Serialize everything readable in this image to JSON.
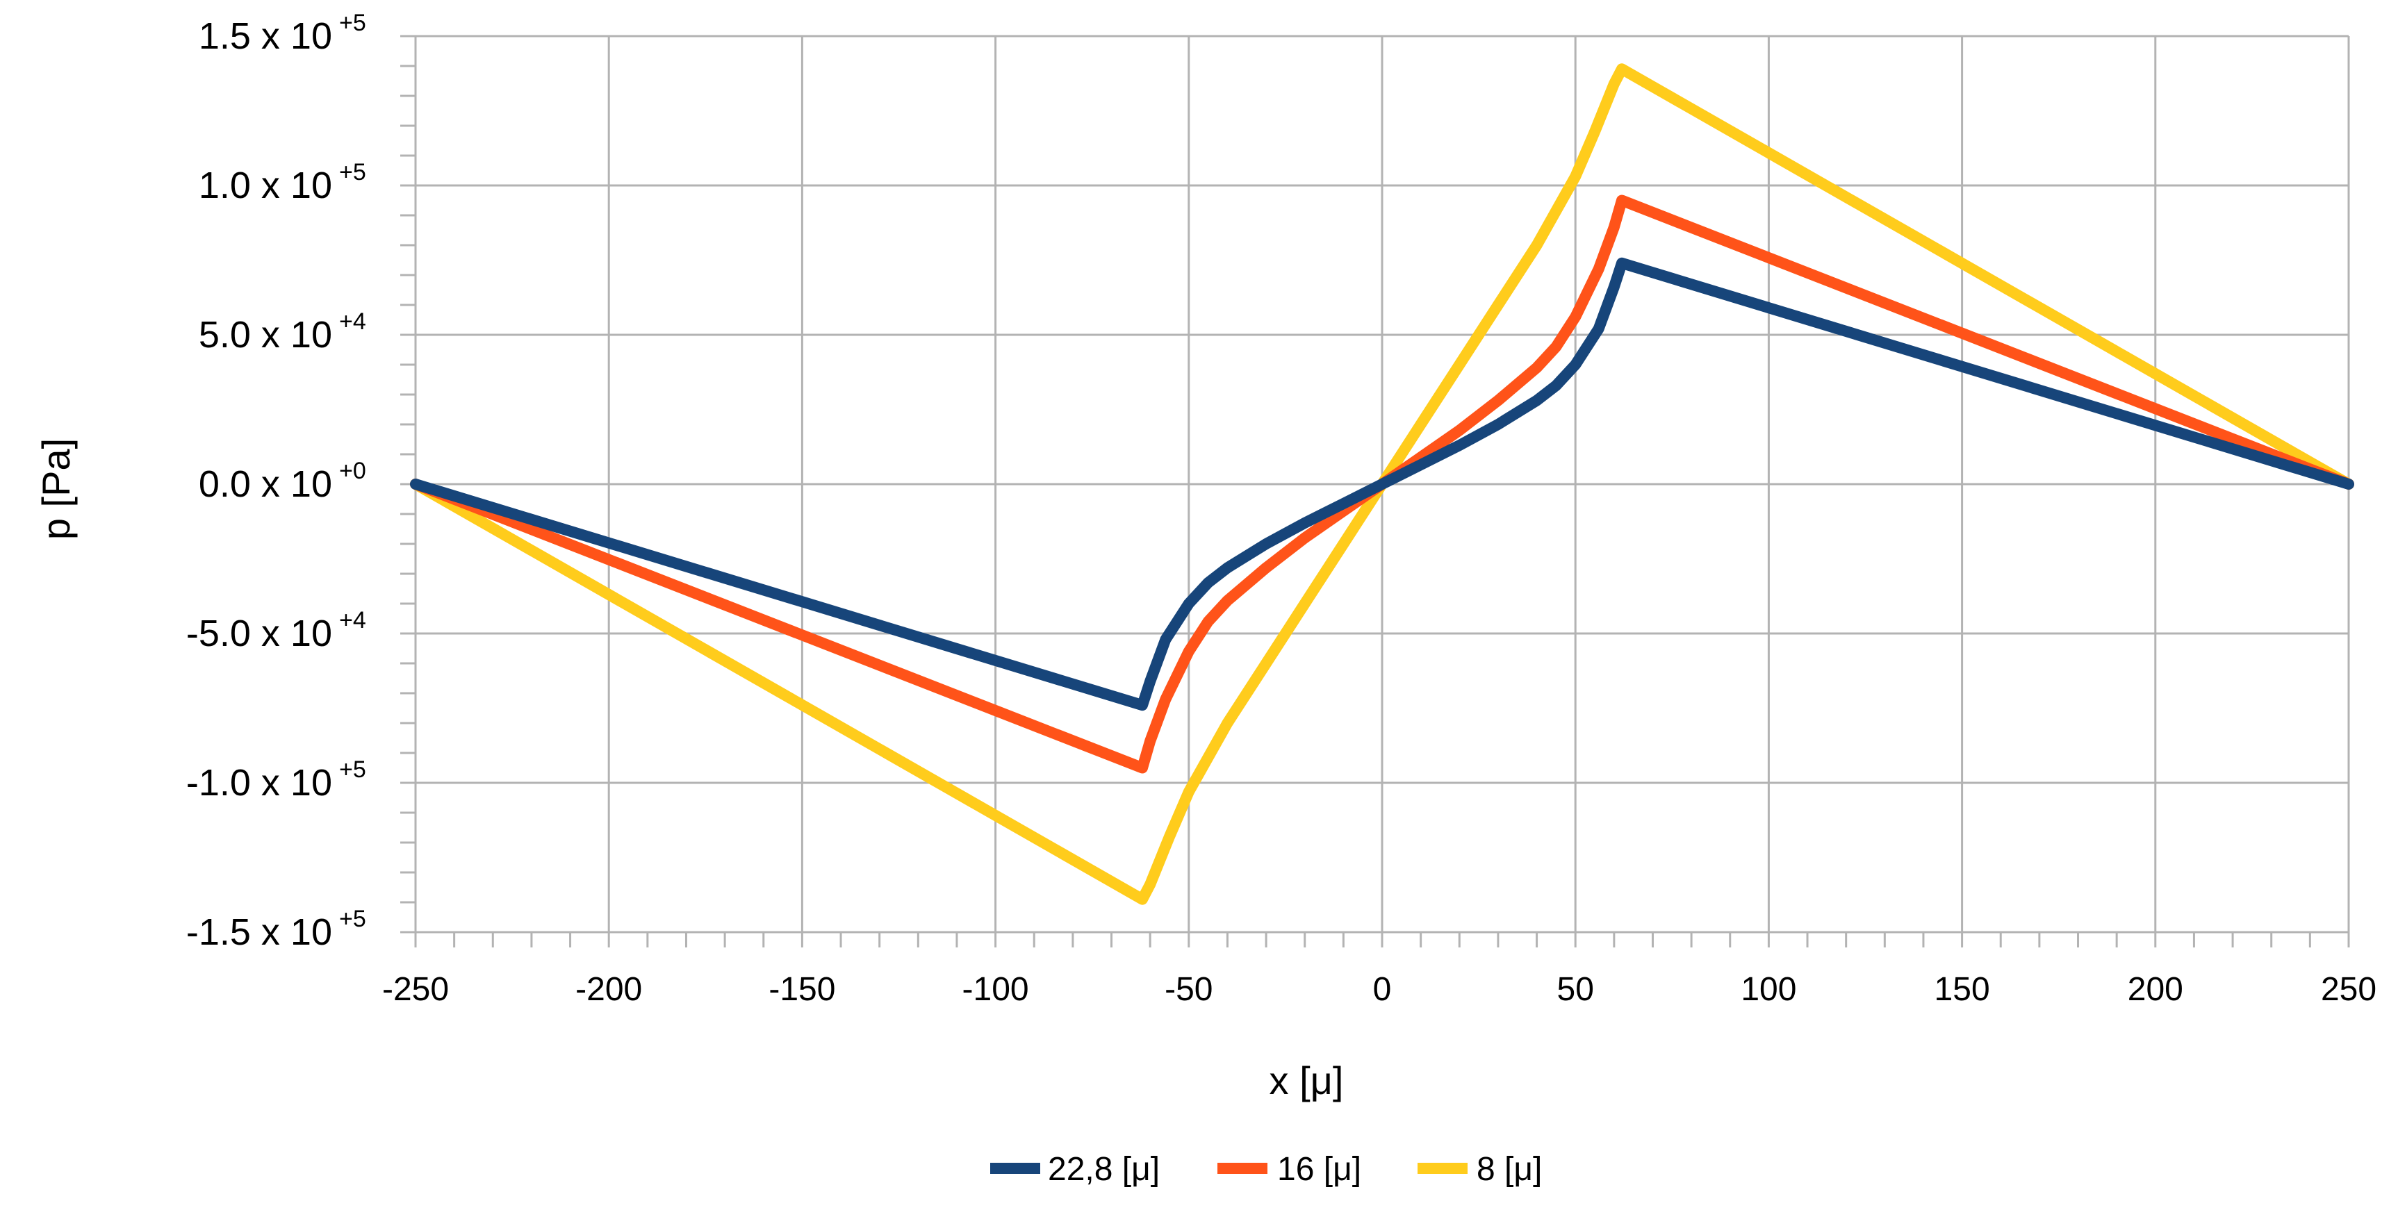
{
  "chart_data": {
    "type": "line",
    "title": "",
    "xlabel": "x [μ]",
    "ylabel": "p [Pa]",
    "xlim": [
      -250,
      250
    ],
    "ylim": [
      -150000,
      150000
    ],
    "x_ticks": [
      -250,
      -200,
      -150,
      -100,
      -50,
      0,
      50,
      100,
      150,
      200,
      250
    ],
    "x_tick_labels": [
      "-250",
      "-200",
      "-150",
      "-100",
      "-50",
      "0",
      "50",
      "100",
      "150",
      "200",
      "250"
    ],
    "y_ticks": [
      150000,
      100000,
      50000,
      0,
      -50000,
      -100000,
      -150000
    ],
    "y_tick_labels": [
      {
        "mantissa": "1.5 x 10",
        "exp": "+5"
      },
      {
        "mantissa": "1.0 x 10",
        "exp": "+5"
      },
      {
        "mantissa": "5.0 x 10",
        "exp": "+4"
      },
      {
        "mantissa": "0.0 x 10",
        "exp": "+0"
      },
      {
        "mantissa": "-5.0 x 10",
        "exp": "+4"
      },
      {
        "mantissa": "-1.0 x 10",
        "exp": "+5"
      },
      {
        "mantissa": "-1.5 x 10",
        "exp": "+5"
      }
    ],
    "grid": true,
    "legend_position": "bottom",
    "series": [
      {
        "name": "22,8 [μ]",
        "color": "#17457A",
        "x": [
          -250,
          -62,
          -60,
          -56,
          -50,
          -45,
          -40,
          -30,
          -20,
          -10,
          0,
          10,
          20,
          30,
          40,
          45,
          50,
          56,
          60,
          62,
          250
        ],
        "y": [
          0,
          -74000,
          -66000,
          -52000,
          -40000,
          -33000,
          -28000,
          -20000,
          -13000,
          -6500,
          0,
          6500,
          13000,
          20000,
          28000,
          33000,
          40000,
          52000,
          66000,
          74000,
          0
        ]
      },
      {
        "name": "16 [μ]",
        "color": "#FF5319",
        "x": [
          -250,
          -62,
          -60,
          -56,
          -50,
          -45,
          -40,
          -30,
          -20,
          -10,
          0,
          10,
          20,
          30,
          40,
          45,
          50,
          56,
          60,
          62,
          250
        ],
        "y": [
          0,
          -95000,
          -86000,
          -72000,
          -56000,
          -46000,
          -39000,
          -28000,
          -18000,
          -9000,
          0,
          9000,
          18000,
          28000,
          39000,
          46000,
          56000,
          72000,
          86000,
          95000,
          0
        ]
      },
      {
        "name": "8 [μ]",
        "color": "#FFCC1C",
        "x": [
          -250,
          -62,
          -60,
          -55,
          -50,
          -40,
          -30,
          -20,
          -10,
          0,
          10,
          20,
          30,
          40,
          50,
          55,
          60,
          62,
          250
        ],
        "y": [
          0,
          -139000,
          -134000,
          -118000,
          -103000,
          -80000,
          -60000,
          -40000,
          -20000,
          0,
          20000,
          40000,
          60000,
          80000,
          103000,
          118000,
          134000,
          139000,
          0
        ]
      }
    ]
  }
}
